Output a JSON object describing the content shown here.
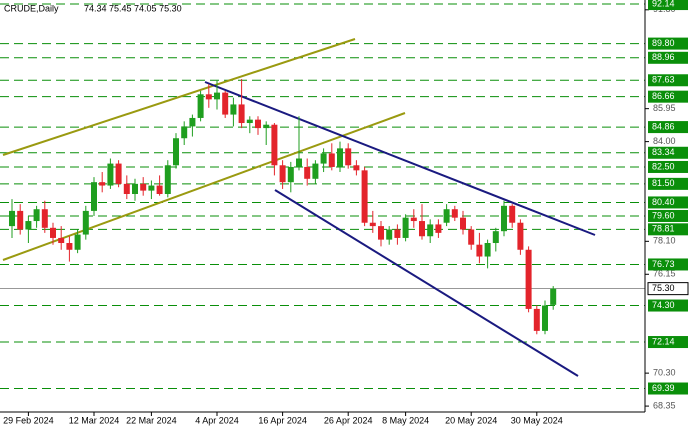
{
  "chart_data": {
    "type": "candlestick",
    "title": "CRUDE,Daily",
    "subtitle": "74.34 75.45 74.05 75.30",
    "categories": [
      null,
      null,
      "29 Feb 2024",
      null,
      null,
      null,
      null,
      null,
      null,
      null,
      "12 Mar 2024",
      null,
      null,
      null,
      null,
      null,
      null,
      "22 Mar 2024",
      null,
      null,
      null,
      null,
      null,
      null,
      null,
      "4 Apr 2024",
      null,
      null,
      null,
      null,
      null,
      null,
      null,
      "16 Apr 2024",
      null,
      null,
      null,
      null,
      null,
      null,
      null,
      "26 Apr 2024",
      null,
      null,
      null,
      null,
      null,
      null,
      "8 May 2024",
      null,
      null,
      null,
      null,
      null,
      null,
      null,
      "20 May 2024",
      null,
      null,
      null,
      null,
      null,
      null,
      null,
      "30 May 2024",
      null,
      null
    ],
    "series": [
      {
        "up_color": "#1f9e1f",
        "down_color": "#e3242b",
        "open": [
          79.0,
          79.9,
          78.8,
          79.3,
          80.0,
          78.9,
          78.3,
          78.0,
          77.6,
          78.5,
          79.9,
          81.6,
          81.4,
          82.7,
          81.5,
          80.9,
          81.5,
          81.1,
          81.4,
          80.9,
          82.6,
          84.2,
          84.9,
          85.4,
          86.8,
          86.5,
          86.9,
          85.6,
          86.2,
          85.1,
          85.3,
          84.8,
          85.0,
          82.6,
          81.6,
          82.5,
          82.5,
          81.8,
          82.7,
          83.3,
          82.5,
          83.6,
          82.6,
          82.3,
          79.2,
          79.0,
          78.2,
          78.8,
          78.3,
          79.5,
          79.3,
          78.4,
          79.1,
          79.2,
          80.0,
          79.5,
          78.8,
          77.9,
          77.2,
          78.0,
          78.7,
          80.2,
          79.2,
          77.6,
          74.1,
          72.8,
          74.34
        ],
        "high": [
          80.6,
          80.3,
          79.6,
          80.2,
          80.5,
          79.2,
          79.0,
          78.4,
          78.8,
          80.2,
          81.9,
          82.2,
          83.0,
          82.9,
          82.0,
          81.8,
          81.9,
          81.7,
          82.0,
          82.9,
          84.5,
          85.2,
          85.6,
          87.0,
          87.4,
          87.6,
          87.0,
          86.6,
          87.7,
          85.5,
          85.5,
          85.2,
          85.1,
          82.9,
          82.8,
          85.5,
          83.0,
          82.9,
          83.6,
          83.9,
          84.0,
          83.9,
          82.9,
          82.5,
          79.9,
          79.3,
          79.0,
          79.1,
          79.7,
          80.0,
          80.3,
          79.4,
          79.4,
          80.3,
          80.2,
          79.9,
          79.0,
          78.6,
          78.2,
          78.9,
          80.5,
          80.3,
          79.4,
          77.8,
          74.3,
          74.6,
          75.45
        ],
        "low": [
          78.3,
          78.5,
          78.0,
          78.9,
          78.6,
          77.9,
          77.6,
          76.9,
          77.4,
          78.2,
          79.6,
          81.0,
          81.2,
          81.3,
          80.6,
          80.5,
          80.8,
          80.6,
          80.8,
          80.7,
          82.4,
          83.8,
          84.3,
          85.2,
          86.0,
          85.9,
          85.4,
          84.9,
          84.8,
          84.5,
          84.4,
          83.8,
          82.0,
          81.2,
          81.0,
          82.3,
          81.4,
          81.5,
          82.2,
          82.3,
          82.2,
          82.4,
          82.0,
          79.0,
          78.6,
          77.8,
          77.9,
          77.9,
          78.1,
          78.9,
          78.2,
          78.0,
          78.3,
          79.0,
          79.3,
          78.5,
          77.6,
          76.8,
          76.5,
          77.5,
          78.4,
          78.9,
          77.3,
          73.9,
          72.6,
          72.6,
          74.05
        ],
        "close": [
          79.9,
          78.8,
          79.3,
          80.0,
          78.9,
          78.3,
          78.0,
          77.6,
          78.5,
          79.9,
          81.6,
          81.4,
          82.7,
          81.5,
          80.9,
          81.5,
          81.1,
          81.4,
          80.9,
          82.6,
          84.2,
          84.9,
          85.4,
          86.8,
          86.5,
          86.9,
          85.6,
          86.2,
          85.1,
          85.3,
          84.8,
          85.0,
          82.6,
          81.6,
          82.5,
          83.0,
          81.8,
          82.7,
          83.3,
          82.5,
          83.6,
          82.6,
          82.3,
          79.2,
          79.0,
          78.2,
          78.8,
          78.3,
          79.5,
          79.3,
          78.4,
          79.1,
          78.6,
          80.0,
          79.5,
          78.8,
          77.9,
          77.2,
          78.0,
          78.7,
          80.2,
          79.2,
          77.6,
          74.1,
          72.8,
          74.3,
          75.3
        ]
      }
    ],
    "ylim": [
      68.0,
      92.38
    ],
    "yticks": [
      {
        "value": 91.8,
        "label": "91.80"
      },
      85.95,
      {
        "value": 84,
        "label": "84.00"
      },
      {
        "value": 78.1,
        "label": "78.10"
      },
      76.15,
      {
        "value": 70.3,
        "label": "70.30"
      },
      68.35
    ],
    "levels": [
      {
        "value": 92.14,
        "label": "92.14"
      },
      {
        "value": 89.8,
        "label": "89.80"
      },
      88.96,
      87.63,
      86.66,
      84.86,
      83.34,
      {
        "value": 82.5,
        "label": "82.50"
      },
      {
        "value": 81.5,
        "label": "81.50"
      },
      {
        "value": 80.4,
        "label": "80.40"
      },
      {
        "value": 79.6,
        "label": "79.60"
      },
      78.81,
      76.73,
      {
        "value": 74.3,
        "label": "74.30"
      },
      72.14,
      69.39
    ],
    "last_price": {
      "value": 75.3,
      "label": "75.30"
    },
    "level_color": "#0a8f0a"
  }
}
